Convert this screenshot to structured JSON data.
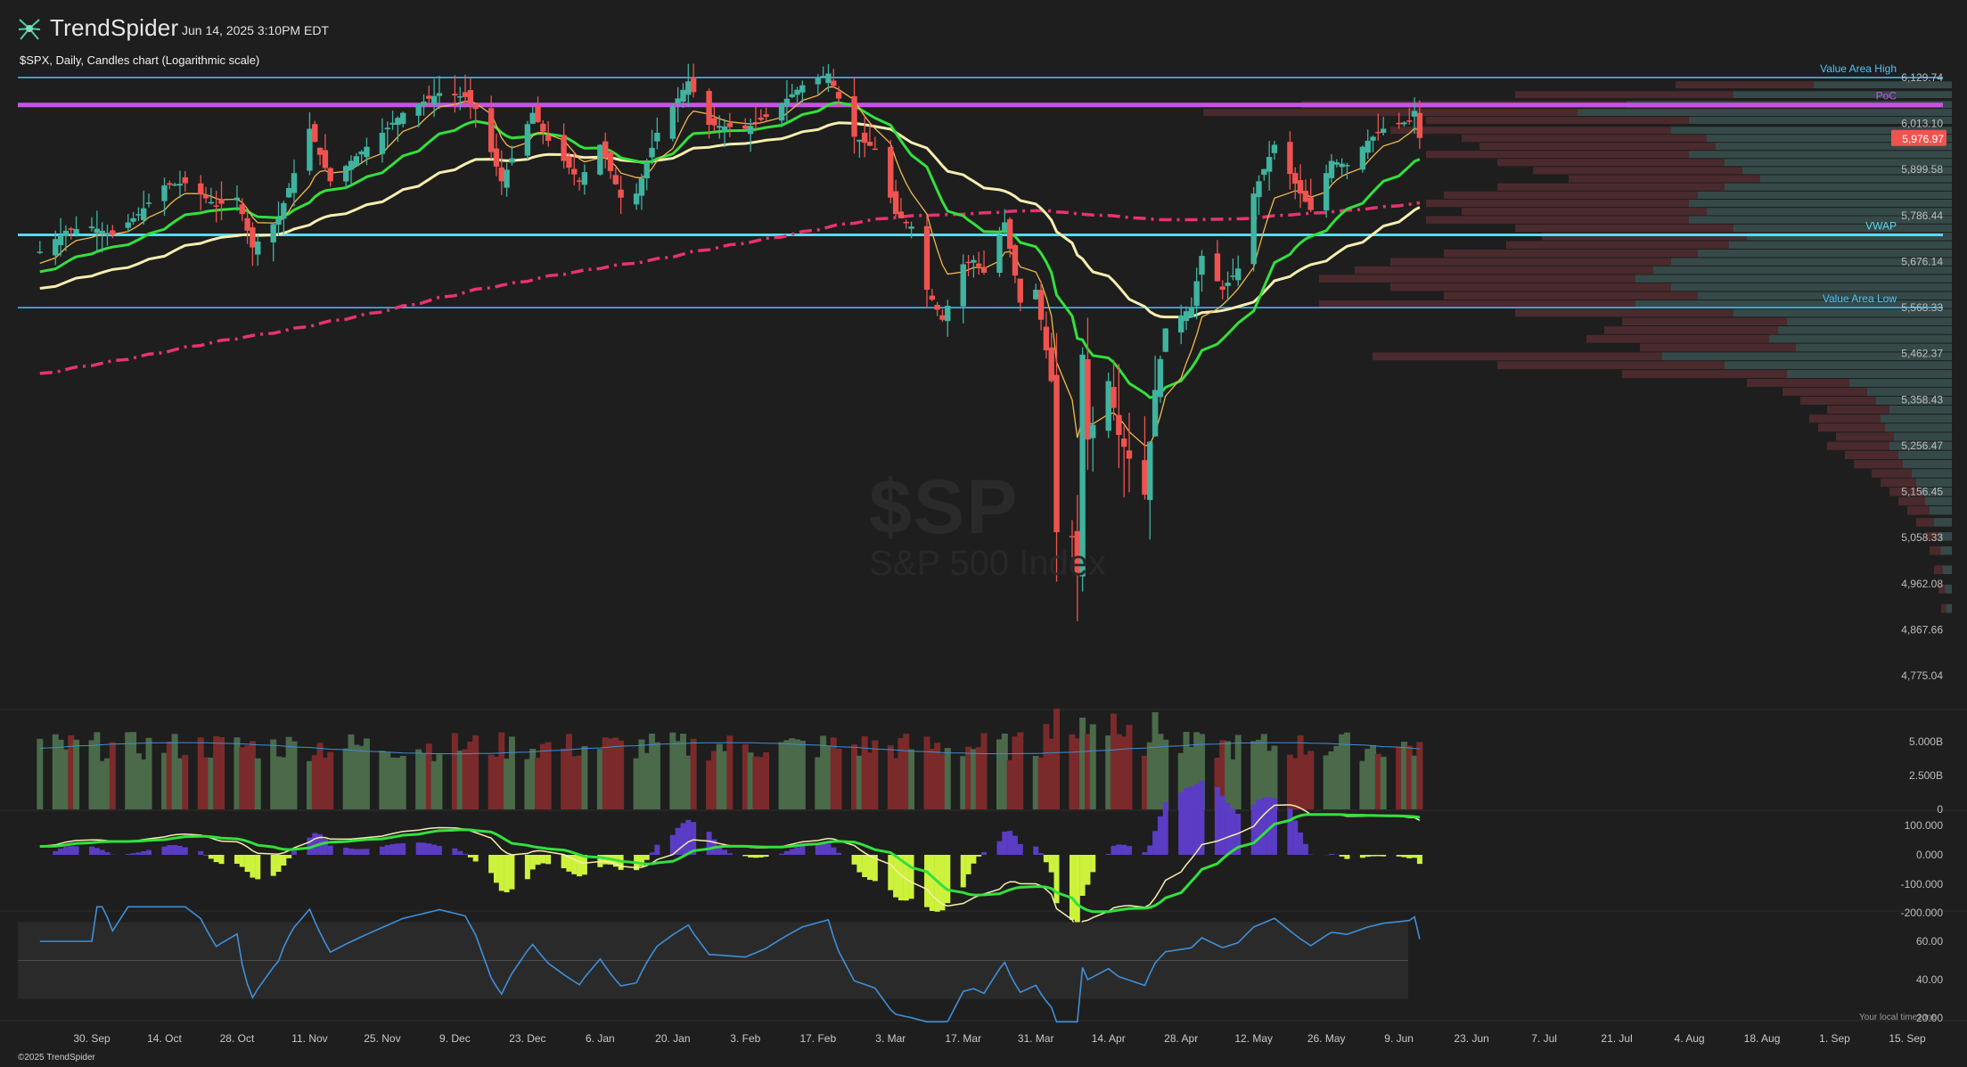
{
  "header": {
    "brand": "TrendSpider",
    "timestamp": "Jun 14, 2025 3:10PM EDT",
    "subtitle": "$SPX, Daily, Candles chart (Logarithmic scale)",
    "copyright": "©2025 TrendSpider",
    "timezone_note": "Your local timezone",
    "watermark_symbol": "$SP",
    "watermark_name": "S&P 500 Index"
  },
  "colors": {
    "background": "#1e1e1e",
    "bull": "#3fb39f",
    "bear": "#ef5350",
    "ema_fast": "#f2b84b",
    "ema_mid": "#33e03c",
    "ema_slow": "#f7eeb0",
    "sma_200": "#e8336d",
    "value_area": "#4fc3f7",
    "poc": "#c951e8",
    "vwap": "#5ad8f0",
    "price_tag": "#ef5350",
    "macd_hist_pos": "#5b3cc4",
    "macd_hist_neg": "#cdf23c",
    "rsi": "#3f8fd8"
  },
  "chart_data": {
    "type": "candlestick",
    "scale": "log",
    "y_ticks": [
      "6,129.74",
      "6,013.10",
      "5,899.58",
      "5,786.44",
      "5,676.14",
      "5,568.33",
      "5,462.37",
      "5,358.43",
      "5,256.47",
      "5,156.45",
      "5,058.33",
      "4,962.08",
      "4,867.66",
      "4,775.04"
    ],
    "y_tick_values": [
      6129.74,
      6013.1,
      5899.58,
      5786.44,
      5676.14,
      5568.33,
      5462.37,
      5358.43,
      5256.47,
      5156.45,
      5058.33,
      4962.08,
      4867.66,
      4775.04
    ],
    "x_ticks": [
      "30. Sep",
      "14. Oct",
      "28. Oct",
      "11. Nov",
      "25. Nov",
      "9. Dec",
      "23. Dec",
      "6. Jan",
      "20. Jan",
      "3. Feb",
      "17. Feb",
      "3. Mar",
      "17. Mar",
      "31. Mar",
      "14. Apr",
      "28. Apr",
      "12. May",
      "26. May",
      "9. Jun",
      "23. Jun",
      "7. Jul",
      "21. Jul",
      "4. Aug",
      "18. Aug",
      "1. Sep",
      "15. Sep"
    ],
    "last_price": "5,976.97",
    "levels": {
      "value_area_high": {
        "label": "Value Area High",
        "value": 6129.74
      },
      "poc": {
        "label": "PoC",
        "value": 6060
      },
      "vwap": {
        "label": "VWAP",
        "value": 5740
      },
      "value_area_low": {
        "label": "Value Area Low",
        "value": 5568.33
      }
    },
    "anchors": [
      [
        "2024-09-20",
        5700
      ],
      [
        "2024-09-25",
        5750
      ],
      [
        "2024-09-30",
        5760
      ],
      [
        "2024-10-04",
        5740
      ],
      [
        "2024-10-09",
        5790
      ],
      [
        "2024-10-14",
        5860
      ],
      [
        "2024-10-18",
        5865
      ],
      [
        "2024-10-24",
        5810
      ],
      [
        "2024-10-28",
        5830
      ],
      [
        "2024-10-31",
        5710
      ],
      [
        "2024-11-05",
        5780
      ],
      [
        "2024-11-11",
        6000
      ],
      [
        "2024-11-15",
        5870
      ],
      [
        "2024-11-19",
        5920
      ],
      [
        "2024-11-25",
        5990
      ],
      [
        "2024-11-29",
        6040
      ],
      [
        "2024-12-06",
        6090
      ],
      [
        "2024-12-11",
        6080
      ],
      [
        "2024-12-13",
        6050
      ],
      [
        "2024-12-18",
        5870
      ],
      [
        "2024-12-24",
        6040
      ],
      [
        "2024-12-27",
        5970
      ],
      [
        "2025-01-02",
        5870
      ],
      [
        "2025-01-06",
        5960
      ],
      [
        "2025-01-10",
        5830
      ],
      [
        "2025-01-13",
        5840
      ],
      [
        "2025-01-17",
        5990
      ],
      [
        "2025-01-23",
        6120
      ],
      [
        "2025-01-27",
        6010
      ],
      [
        "2025-02-03",
        6000
      ],
      [
        "2025-02-07",
        6030
      ],
      [
        "2025-02-14",
        6110
      ],
      [
        "2025-02-19",
        6140
      ],
      [
        "2025-02-24",
        5980
      ],
      [
        "2025-02-28",
        5950
      ],
      [
        "2025-03-04",
        5790
      ],
      [
        "2025-03-07",
        5760
      ],
      [
        "2025-03-10",
        5610
      ],
      [
        "2025-03-13",
        5540
      ],
      [
        "2025-03-17",
        5670
      ],
      [
        "2025-03-19",
        5680
      ],
      [
        "2025-03-21",
        5650
      ],
      [
        "2025-03-25",
        5770
      ],
      [
        "2025-03-28",
        5580
      ],
      [
        "2025-03-31",
        5610
      ],
      [
        "2025-04-03",
        5400
      ],
      [
        "2025-04-04",
        5070
      ],
      [
        "2025-04-07",
        5060
      ],
      [
        "2025-04-08",
        4980
      ],
      [
        "2025-04-09",
        5460
      ],
      [
        "2025-04-10",
        5270
      ],
      [
        "2025-04-14",
        5400
      ],
      [
        "2025-04-16",
        5280
      ],
      [
        "2025-04-21",
        5150
      ],
      [
        "2025-04-23",
        5380
      ],
      [
        "2025-04-25",
        5520
      ],
      [
        "2025-04-30",
        5570
      ],
      [
        "2025-05-02",
        5690
      ],
      [
        "2025-05-06",
        5610
      ],
      [
        "2025-05-09",
        5660
      ],
      [
        "2025-05-12",
        5840
      ],
      [
        "2025-05-16",
        5960
      ],
      [
        "2025-05-21",
        5840
      ],
      [
        "2025-05-23",
        5800
      ],
      [
        "2025-05-27",
        5920
      ],
      [
        "2025-05-30",
        5910
      ],
      [
        "2025-06-03",
        5970
      ],
      [
        "2025-06-06",
        6000
      ],
      [
        "2025-06-11",
        6020
      ],
      [
        "2025-06-12",
        6045
      ],
      [
        "2025-06-13",
        5976.97
      ]
    ],
    "volume_ticks": [
      "5.000B",
      "2.500B",
      "0"
    ],
    "macd_ticks": [
      "100.000",
      "0.000",
      "-100.000",
      "-200.000"
    ],
    "rsi_ticks": [
      "60.00",
      "40.00",
      "20.00"
    ]
  }
}
